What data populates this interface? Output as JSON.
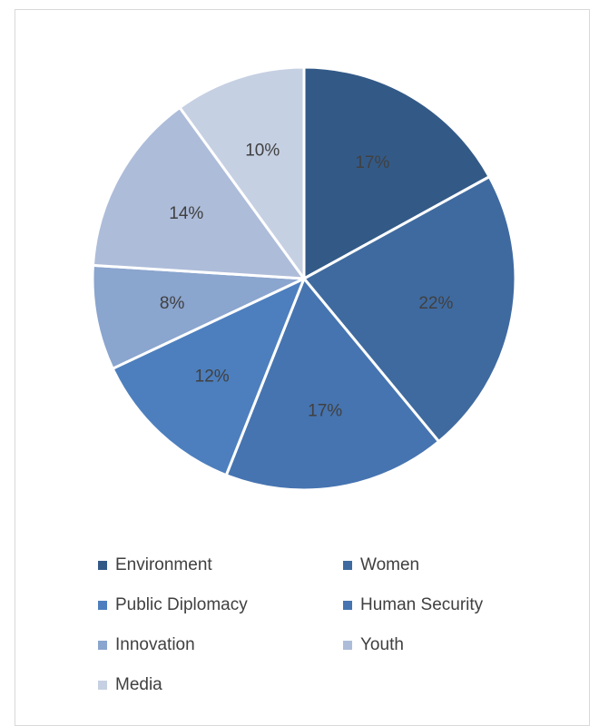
{
  "chart_data": {
    "type": "pie",
    "categories": [
      "Environment",
      "Women",
      "Human Security",
      "Public Diplomacy",
      "Innovation",
      "Youth",
      "Media"
    ],
    "values": [
      17,
      22,
      17,
      12,
      8,
      14,
      10
    ],
    "labels": [
      "17%",
      "22%",
      "17%",
      "12%",
      "8%",
      "14%",
      "10%"
    ],
    "colors": [
      "#335a87",
      "#3f6a9f",
      "#4674b0",
      "#4d7fbe",
      "#8aa5ce",
      "#adbcd9",
      "#c6d0e3"
    ],
    "start_angle_deg": 0,
    "direction": "clockwise",
    "legend_position": "bottom"
  },
  "legend": {
    "items": [
      {
        "label": "Environment",
        "color": "#335a87"
      },
      {
        "label": "Women",
        "color": "#3f6a9f"
      },
      {
        "label": "Public Diplomacy",
        "color": "#4d7fbe"
      },
      {
        "label": "Human Security",
        "color": "#4674b0"
      },
      {
        "label": "Innovation",
        "color": "#8aa5ce"
      },
      {
        "label": "Youth",
        "color": "#adbcd9"
      },
      {
        "label": "Media",
        "color": "#c6d0e3"
      }
    ]
  }
}
